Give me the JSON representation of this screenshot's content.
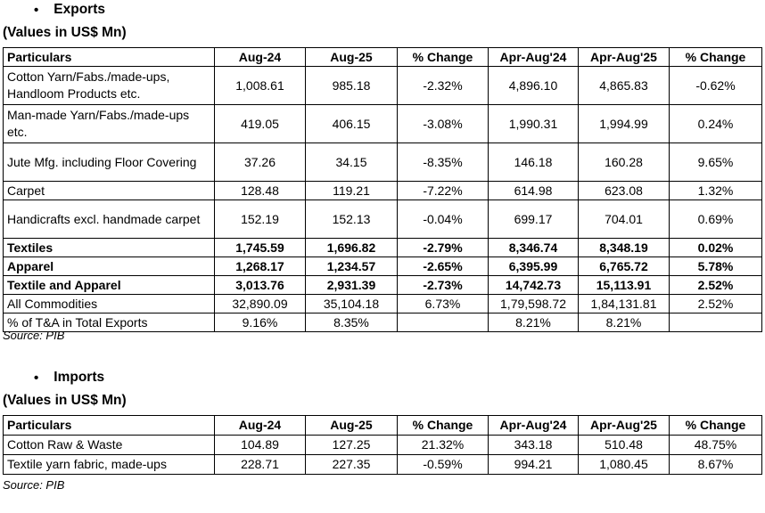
{
  "exports": {
    "bullet": "•",
    "title": "Exports",
    "units": "(Values in US$ Mn)",
    "headers": [
      "Particulars",
      "Aug-24",
      "Aug-25",
      "% Change",
      "Apr-Aug'24",
      "Apr-Aug'25",
      "% Change"
    ],
    "rows": [
      {
        "cells": [
          "Cotton Yarn/Fabs./made-ups, Handloom Products etc.",
          "1,008.61",
          "985.18",
          "-2.32%",
          "4,896.10",
          "4,865.83",
          "-0.62%"
        ],
        "bold": false
      },
      {
        "cells": [
          "Man-made Yarn/Fabs./made-ups etc.",
          "419.05",
          "406.15",
          "-3.08%",
          "1,990.31",
          "1,994.99",
          "0.24%"
        ],
        "bold": false
      },
      {
        "cells": [
          "Jute Mfg. including Floor Covering",
          "37.26",
          "34.15",
          "-8.35%",
          "146.18",
          "160.28",
          "9.65%"
        ],
        "bold": false
      },
      {
        "cells": [
          "Carpet",
          "128.48",
          "119.21",
          "-7.22%",
          "614.98",
          "623.08",
          "1.32%"
        ],
        "bold": false
      },
      {
        "cells": [
          "Handicrafts excl. handmade carpet",
          "152.19",
          "152.13",
          "-0.04%",
          "699.17",
          "704.01",
          "0.69%"
        ],
        "bold": false
      },
      {
        "cells": [
          "Textiles",
          "1,745.59",
          "1,696.82",
          "-2.79%",
          "8,346.74",
          "8,348.19",
          "0.02%"
        ],
        "bold": true
      },
      {
        "cells": [
          "Apparel",
          "1,268.17",
          "1,234.57",
          "-2.65%",
          "6,395.99",
          "6,765.72",
          "5.78%"
        ],
        "bold": true
      },
      {
        "cells": [
          "Textile and Apparel",
          "3,013.76",
          "2,931.39",
          "-2.73%",
          "14,742.73",
          "15,113.91",
          "2.52%"
        ],
        "bold": true
      },
      {
        "cells": [
          "All Commodities",
          "32,890.09",
          "35,104.18",
          "6.73%",
          "1,79,598.72",
          "1,84,131.81",
          "2.52%"
        ],
        "bold": false
      },
      {
        "cells": [
          "% of T&A in Total Exports",
          "9.16%",
          "8.35%",
          "",
          "8.21%",
          "8.21%",
          ""
        ],
        "bold": false
      }
    ],
    "source": "Source: PIB"
  },
  "imports": {
    "bullet": "•",
    "title": "Imports",
    "units": "(Values in US$ Mn)",
    "headers": [
      "Particulars",
      "Aug-24",
      "Aug-25",
      "% Change",
      "Apr-Aug'24",
      "Apr-Aug'25",
      "% Change"
    ],
    "rows": [
      {
        "cells": [
          "Cotton Raw & Waste",
          "104.89",
          "127.25",
          "21.32%",
          "343.18",
          "510.48",
          "48.75%"
        ],
        "bold": false
      },
      {
        "cells": [
          "Textile yarn fabric, made-ups",
          "228.71",
          "227.35",
          "-0.59%",
          "994.21",
          "1,080.45",
          "8.67%"
        ],
        "bold": false
      }
    ],
    "source": "Source: PIB"
  }
}
